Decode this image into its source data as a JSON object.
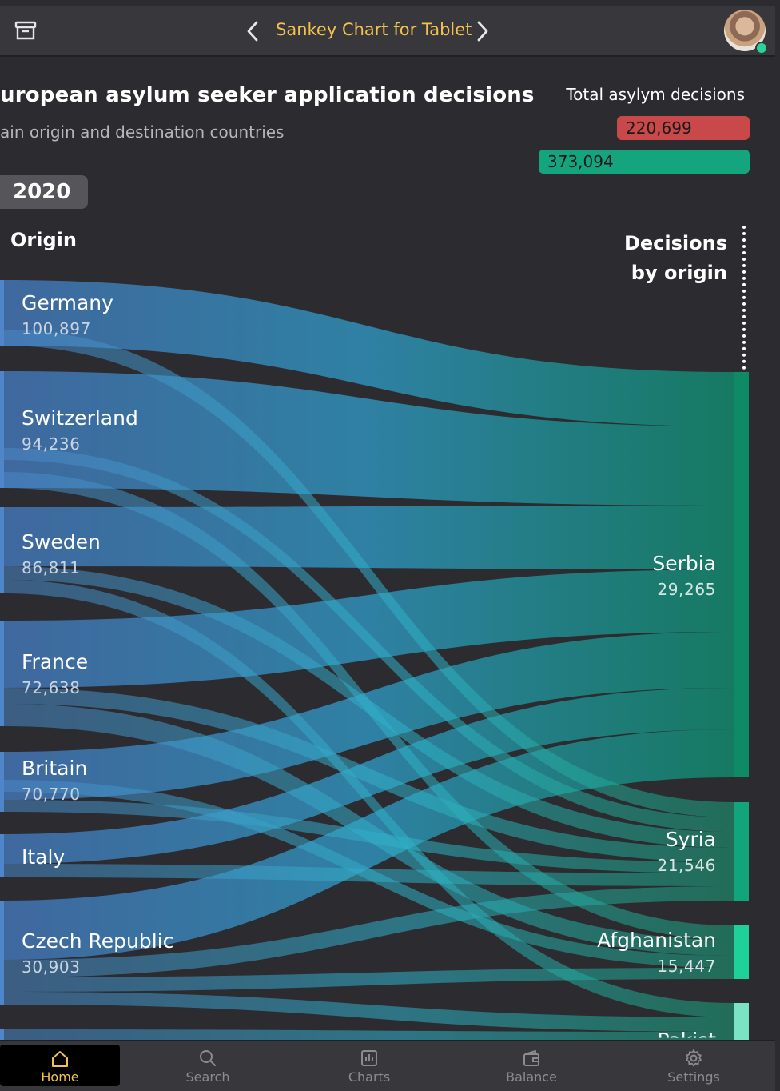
{
  "header": {
    "title": "Sankey Chart for Tablet",
    "icons": [
      "archive-icon",
      "chevron-left-icon",
      "chevron-right-icon",
      "avatar"
    ]
  },
  "main": {
    "title": "uropean asylum seeker application decisions",
    "subtitle": "ain origin and destination countries",
    "year": "2020",
    "totals_label": "Total asylym decisions",
    "total_rejected": "220,699",
    "total_accepted": "373,094",
    "origin_heading": "Origin",
    "dest_heading_line1": "Decisions",
    "dest_heading_line2": "by origin"
  },
  "chart_data": {
    "type": "sankey",
    "title": "uropean asylum seeker application decisions",
    "subtitle": "ain origin and destination countries",
    "year": "2020",
    "origins": [
      {
        "name": "Germany",
        "value": 100897,
        "label": "100,897"
      },
      {
        "name": "Switzerland",
        "value": 94236,
        "label": "94,236"
      },
      {
        "name": "Sweden",
        "value": 86811,
        "label": "86,811"
      },
      {
        "name": "France",
        "value": 72638,
        "label": "72,638"
      },
      {
        "name": "Britain",
        "value": 70770,
        "label": "70,770"
      },
      {
        "name": "Italy",
        "value": null,
        "label": ""
      },
      {
        "name": "Czech Republic",
        "value": 30903,
        "label": "30,903"
      }
    ],
    "destinations": [
      {
        "name": "Serbia",
        "value": 29265,
        "label": "29,265"
      },
      {
        "name": "Syria",
        "value": 21546,
        "label": "21,546"
      },
      {
        "name": "Afghanistan",
        "value": 15447,
        "label": "15,447"
      },
      {
        "name": "Pakist",
        "value": null,
        "label": ""
      }
    ],
    "colors": {
      "origin_flow": "#3f74ad",
      "mid_flow": "#2aa3c0",
      "dest_flow": "#10866a",
      "serbia": "#0f8a66",
      "syria": "#12a57b",
      "afghanistan": "#1fd199",
      "pakistan": "#7be3c4",
      "rejected": "#c9484a",
      "accepted": "#14a57e",
      "accent": "#f2c14e"
    }
  },
  "tabs": [
    {
      "label": "Home",
      "icon": "home-icon",
      "active": true
    },
    {
      "label": "Search",
      "icon": "search-icon",
      "active": false
    },
    {
      "label": "Charts",
      "icon": "chart-icon",
      "active": false
    },
    {
      "label": "Balance",
      "icon": "wallet-icon",
      "active": false
    },
    {
      "label": "Settings",
      "icon": "gear-icon",
      "active": false
    }
  ]
}
